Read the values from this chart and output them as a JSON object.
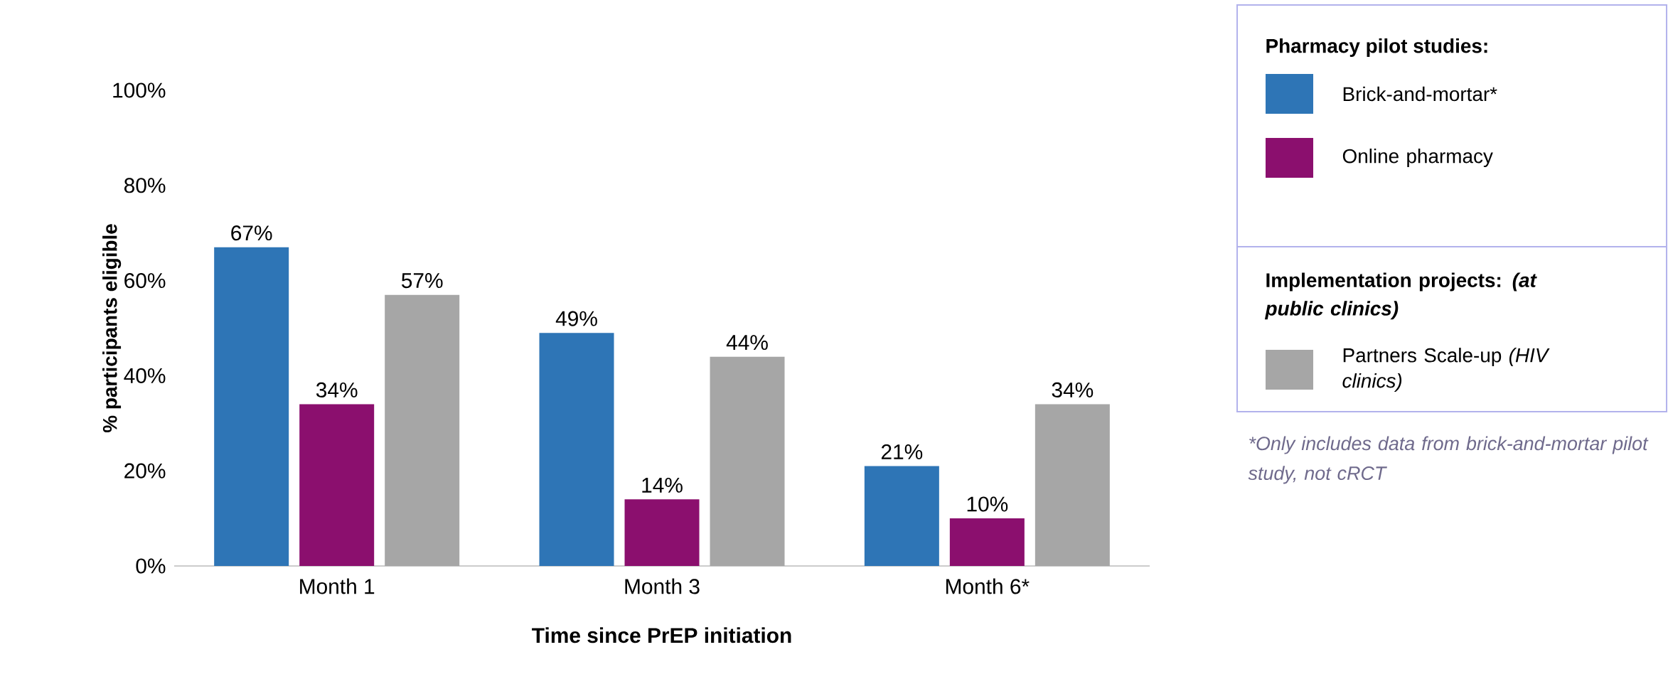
{
  "chart_data": {
    "type": "bar",
    "ylabel": "% participants eligible",
    "xlabel": "Time since PrEP initiation",
    "legend_title": "Pharmacy pilot studies:",
    "legend": "right",
    "categories": [
      "Month 1",
      "Month 3",
      "Month 6*"
    ],
    "ylim": [
      0,
      100
    ],
    "yticks": [
      {
        "value": 0,
        "label": "0%"
      },
      {
        "value": 20,
        "label": "20%"
      },
      {
        "value": 40,
        "label": "40%"
      },
      {
        "value": 60,
        "label": "60%"
      },
      {
        "value": 80,
        "label": "80%"
      },
      {
        "value": 100,
        "label": "100%"
      }
    ],
    "series": [
      {
        "name": "Brick-and-mortar*",
        "color": "#2e75b6",
        "values": [
          67,
          49,
          21
        ],
        "value_labels": [
          "67%",
          "49%",
          "21%"
        ]
      },
      {
        "name": "Online pharmacy",
        "color": "#8b0f6e",
        "values": [
          34,
          14,
          10
        ],
        "value_labels": [
          "34%",
          "14%",
          "10%"
        ]
      },
      {
        "name": "Partners Scale-up *(HIV clinics)*",
        "color": "#a6a6a6",
        "values": [
          57,
          44,
          34
        ],
        "value_labels": [
          "57%",
          "44%",
          "34%"
        ]
      }
    ],
    "annotations": [
      "Implementation projects: *(at public clinics)*",
      "*Only includes data from brick-and-mortar pilot study, not cRCT"
    ]
  }
}
